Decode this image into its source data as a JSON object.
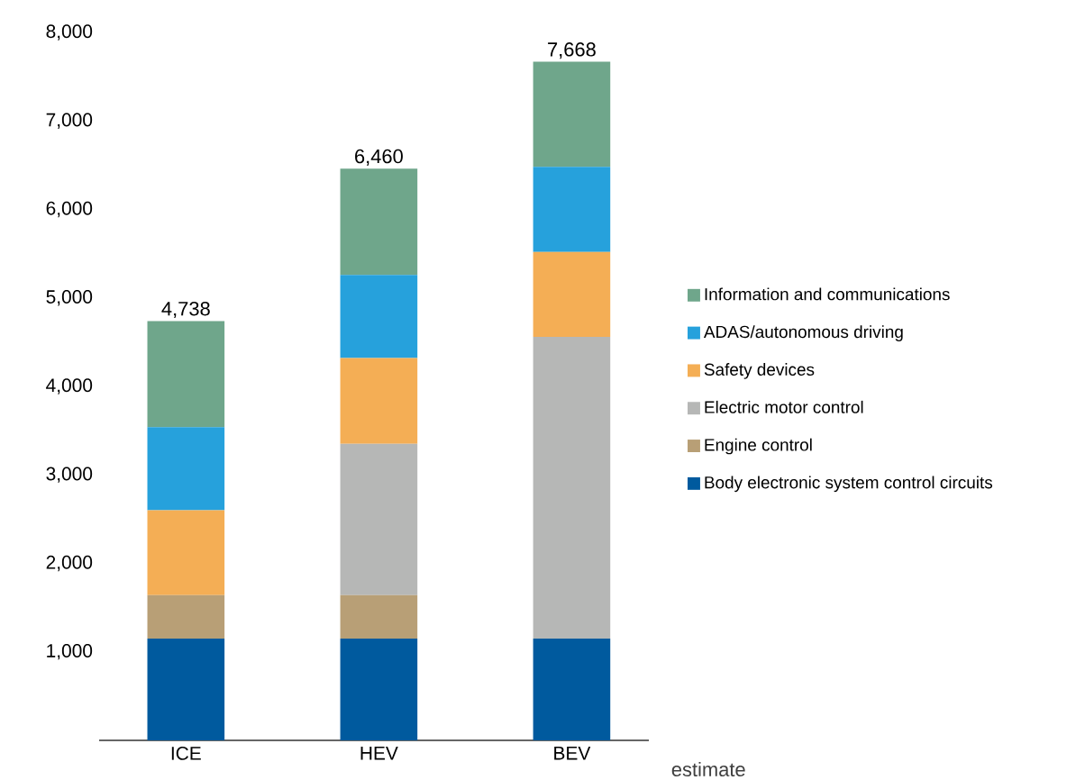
{
  "chart_data": {
    "type": "bar",
    "stacked": true,
    "legend": "right",
    "categories": [
      "ICE",
      "HEV",
      "BEV"
    ],
    "series": [
      {
        "name": "Body electronic system control circuits",
        "color": "#005a9e",
        "values": [
          1150,
          1150,
          1150
        ]
      },
      {
        "name": "Engine control",
        "color": "#b89f76",
        "values": [
          490,
          490,
          0
        ]
      },
      {
        "name": "Electric motor control",
        "color": "#b6b7b6",
        "values": [
          0,
          1710,
          3410
        ]
      },
      {
        "name": "Safety devices",
        "color": "#f4ae55",
        "values": [
          960,
          970,
          960
        ]
      },
      {
        "name": "ADAS/autonomous driving",
        "color": "#26a1dc",
        "values": [
          940,
          940,
          960
        ]
      },
      {
        "name": "Information and communications",
        "color": "#6fa68b",
        "values": [
          1198,
          1200,
          1188
        ]
      }
    ],
    "totals": [
      "4,738",
      "6,460",
      "7,668"
    ],
    "ylim": [
      0,
      8000
    ],
    "yticks": [
      {
        "value": 1000,
        "label": "1,000"
      },
      {
        "value": 2000,
        "label": "2,000"
      },
      {
        "value": 3000,
        "label": "3,000"
      },
      {
        "value": 4000,
        "label": "4,000"
      },
      {
        "value": 5000,
        "label": "5,000"
      },
      {
        "value": 6000,
        "label": "6,000"
      },
      {
        "value": 7000,
        "label": "7,000"
      },
      {
        "value": 8000,
        "label": "8,000"
      }
    ],
    "annotations": [
      "estimate"
    ]
  }
}
